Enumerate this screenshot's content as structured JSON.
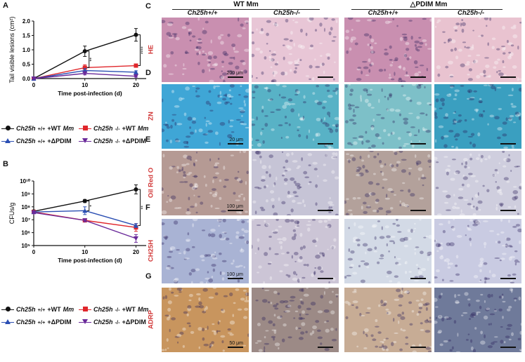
{
  "panels": {
    "A": "A",
    "B": "B",
    "C": "C",
    "D": "D",
    "E": "E",
    "F": "F",
    "G": "G"
  },
  "chart_data": [
    {
      "type": "line",
      "ylabel": "Tail visible lesions (cm²)",
      "xlabel": "Time post-infection (d)",
      "x": [
        0,
        10,
        20
      ],
      "xticks": [
        "0",
        "10",
        "20"
      ],
      "yticks": [
        "0.0",
        "0.5",
        "1.0",
        "1.5",
        "2.0"
      ],
      "ylim": [
        0,
        2.0
      ],
      "xlim": [
        0,
        22
      ],
      "series": [
        {
          "key": "wt_wt",
          "color": "#111111",
          "marker": "circle",
          "values": [
            0.0,
            0.95,
            1.52
          ],
          "err": [
            0,
            0.18,
            0.22
          ]
        },
        {
          "key": "ko_wt",
          "color": "#e0262b",
          "marker": "square",
          "values": [
            0.0,
            0.38,
            0.45
          ],
          "err": [
            0,
            0.1,
            0.06
          ]
        },
        {
          "key": "wt_pdim",
          "color": "#2b4fb3",
          "marker": "triangle",
          "values": [
            0.0,
            0.28,
            0.22
          ],
          "err": [
            0,
            0.07,
            0.05
          ]
        },
        {
          "key": "ko_pdim",
          "color": "#6a2a9a",
          "marker": "triangle-down",
          "values": [
            0.0,
            0.18,
            0.08
          ],
          "err": [
            0,
            0.05,
            0.03
          ]
        }
      ],
      "annotations": [
        "**",
        "****"
      ]
    },
    {
      "type": "line",
      "ylabel": "CFUs/g",
      "xlabel": "Time post-infection (d)",
      "yscale": "log",
      "x": [
        0,
        10,
        20
      ],
      "xticks": [
        "0",
        "10",
        "20"
      ],
      "yticks": [
        "10⁵",
        "10⁶",
        "10⁷",
        "10⁸",
        "10⁹",
        "10¹⁰"
      ],
      "ylim": [
        5,
        10
      ],
      "xlim": [
        0,
        22
      ],
      "series": [
        {
          "key": "wt_wt",
          "color": "#111111",
          "marker": "circle",
          "values": [
            7.65,
            8.45,
            9.35
          ],
          "err": [
            0.1,
            0.12,
            0.35
          ]
        },
        {
          "key": "ko_wt",
          "color": "#e0262b",
          "marker": "square",
          "values": [
            7.6,
            6.95,
            6.4
          ],
          "err": [
            0.08,
            0.1,
            0.3
          ]
        },
        {
          "key": "wt_pdim",
          "color": "#2b4fb3",
          "marker": "triangle",
          "values": [
            7.6,
            7.7,
            6.55
          ],
          "err": [
            0.08,
            0.3,
            0.15
          ]
        },
        {
          "key": "ko_pdim",
          "color": "#6a2a9a",
          "marker": "triangle-down",
          "values": [
            7.55,
            6.95,
            5.55
          ],
          "err": [
            0.08,
            0.1,
            0.3
          ]
        }
      ],
      "annotations": [
        "*",
        "**"
      ]
    }
  ],
  "legend": [
    {
      "key": "wt_wt",
      "prefix": "Ch25h",
      "sup": "+/+",
      "suffix": "+WT ",
      "suffix_it": "Mm",
      "color": "#111111"
    },
    {
      "key": "ko_wt",
      "prefix": "Ch25h",
      "sup": "-/-",
      "suffix": " +WT ",
      "suffix_it": "Mm",
      "color": "#e0262b"
    },
    {
      "key": "wt_pdim",
      "prefix": "Ch25h",
      "sup": "+/+",
      "suffix": "+ΔPDIM",
      "suffix_it": "",
      "color": "#2b4fb3"
    },
    {
      "key": "ko_pdim",
      "prefix": "Ch25h",
      "sup": "-/-",
      "suffix": " +ΔPDIM",
      "suffix_it": "",
      "color": "#6a2a9a"
    }
  ],
  "micro": {
    "group_wt": "WT Mm",
    "group_pdim": "△PDIM Mm",
    "col_heads": [
      "Ch25h+/+",
      "Ch25h-/-",
      "Ch25h+/+",
      "Ch25h-/-"
    ],
    "rows": [
      {
        "letter": "C",
        "label": "HE",
        "scale": "200 μm",
        "palette": [
          "#c98fb0",
          "#e8c6d6",
          "#c98fb0",
          "#e9c3d0"
        ]
      },
      {
        "letter": "D",
        "label": "ZN",
        "scale": "20 μm",
        "palette": [
          "#3fa6d6",
          "#58b2c6",
          "#7dc0c8",
          "#3a9fc0"
        ]
      },
      {
        "letter": "E",
        "label": "Oil Red O",
        "scale": "100 μm",
        "palette": [
          "#b59a94",
          "#c6c4d6",
          "#b3a19b",
          "#cfcede"
        ]
      },
      {
        "letter": "F",
        "label": "CH25H",
        "scale": "100 μm",
        "palette": [
          "#a9b3d4",
          "#ccc5d6",
          "#d3dae6",
          "#c9cbe2"
        ]
      },
      {
        "letter": "G",
        "label": "ADRP",
        "scale": "50 μm",
        "palette": [
          "#c8955e",
          "#9c8a86",
          "#c7ac95",
          "#6f7a9a"
        ]
      }
    ]
  }
}
